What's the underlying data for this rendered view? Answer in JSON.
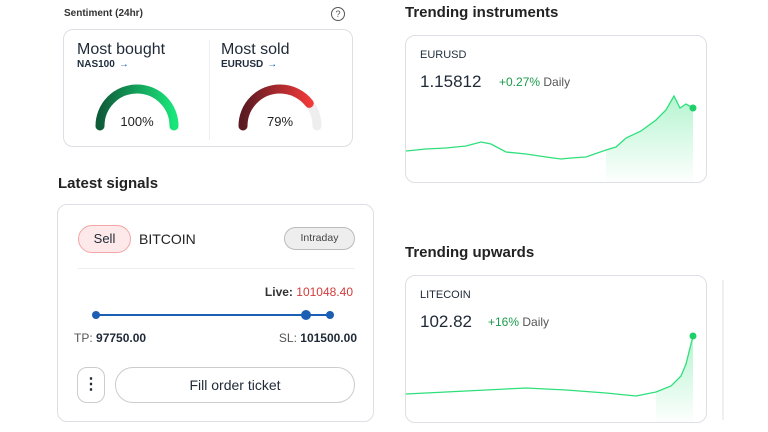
{
  "sentiment": {
    "title": "Sentiment (24hr)",
    "help_icon": "question-circle-icon",
    "bought": {
      "label": "Most bought",
      "instrument": "NAS100",
      "percent": 100,
      "percent_label": "100%"
    },
    "sold": {
      "label": "Most sold",
      "instrument": "EURUSD",
      "percent": 79,
      "percent_label": "79%"
    }
  },
  "signals": {
    "title": "Latest signals",
    "direction": "Sell",
    "instrument": "BITCOIN",
    "timeframe": "Intraday",
    "live_label": "Live:",
    "live_value": "101048.40",
    "tp_label": "TP:",
    "tp_value": "97750.00",
    "sl_label": "SL:",
    "sl_value": "101500.00",
    "more_icon": "vertical-dots-icon",
    "fill_button": "Fill order ticket"
  },
  "trending": {
    "title": "Trending instruments",
    "instrument": "EURUSD",
    "price": "1.15812",
    "change": "+0.27%",
    "period": "Daily"
  },
  "upwards": {
    "title": "Trending upwards",
    "instrument": "LITECOIN",
    "price": "102.82",
    "change": "+16%",
    "period": "Daily"
  },
  "colors": {
    "green": "#1a9b4b",
    "red": "#d23b3b",
    "blue": "#1b5fb5",
    "line": "#2ee07a"
  }
}
